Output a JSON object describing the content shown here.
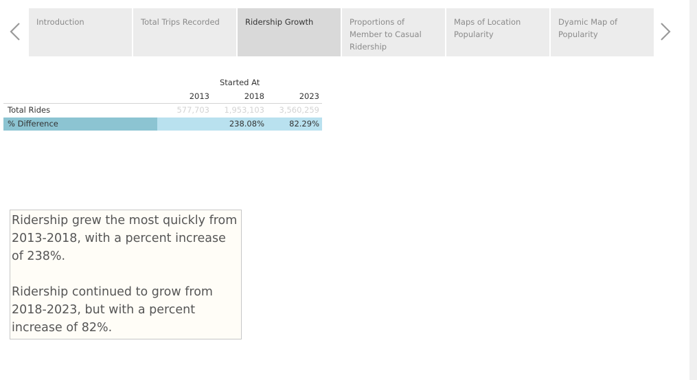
{
  "nav": {
    "tabs": [
      {
        "label": "Introduction",
        "active": false
      },
      {
        "label": "Total Trips Recorded",
        "active": false
      },
      {
        "label": "Ridership Growth",
        "active": true
      },
      {
        "label": "Proportions of Member to Casual Ridership",
        "active": false
      },
      {
        "label": "Maps of Location Popularity",
        "active": false
      },
      {
        "label": "Dyamic Map of Popularity",
        "active": false
      }
    ],
    "prev_icon": "chevron-left-icon",
    "next_icon": "chevron-right-icon"
  },
  "crosstab": {
    "column_header_title": "Started At",
    "columns": [
      "2013",
      "2018",
      "2023"
    ],
    "rows": [
      {
        "label": "Total Rides",
        "values": [
          "577,703",
          "1,953,103",
          "3,560,259"
        ]
      },
      {
        "label": "% Difference",
        "values": [
          "",
          "238.08%",
          "82.29%"
        ]
      }
    ],
    "colors": {
      "highlight_label": "#8cc4d2",
      "highlight_cells": "#b9e1ef",
      "faded_text": "#d3d3d3"
    }
  },
  "note": {
    "paragraphs": [
      "Ridership grew the most quickly from 2013-2018, with a percent increase of 238%.",
      "Ridership continued to grow from 2018-2023, but with a percent increase of 82%."
    ]
  }
}
